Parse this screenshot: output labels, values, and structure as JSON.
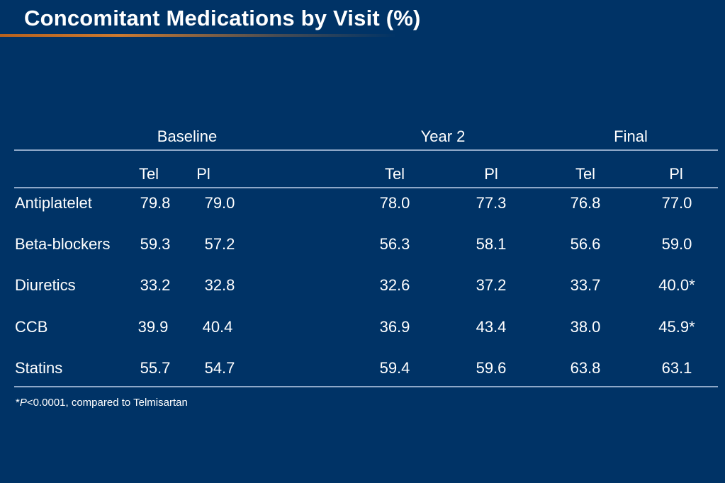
{
  "slide": {
    "title": "Concomitant Medications by Visit (%)"
  },
  "table": {
    "groups": [
      "Baseline",
      "Year 2",
      "Final"
    ],
    "subheaders": [
      "Tel",
      "Pl",
      "Tel",
      "Pl",
      "Tel",
      "Pl"
    ],
    "rows": [
      {
        "label": "Antiplatelet",
        "values": [
          "79.8",
          "79.0",
          "78.0",
          "77.3",
          "76.8",
          "77.0"
        ]
      },
      {
        "label": "Beta-blockers",
        "values": [
          "59.3",
          "57.2",
          "56.3",
          "58.1",
          "56.6",
          "59.0"
        ]
      },
      {
        "label": "Diuretics",
        "values": [
          "33.2",
          "32.8",
          "32.6",
          "37.2",
          "33.7",
          "40.0*"
        ]
      },
      {
        "label": "CCB",
        "values": [
          "39.9",
          "40.4",
          "36.9",
          "43.4",
          "38.0",
          "45.9*"
        ]
      },
      {
        "label": "Statins",
        "values": [
          "55.7",
          "54.7",
          "59.4",
          "59.6",
          "63.8",
          "63.1"
        ]
      }
    ]
  },
  "footnote": {
    "star": "*",
    "p": "P",
    "text": "<0.0001, compared to Telmisartan"
  }
}
